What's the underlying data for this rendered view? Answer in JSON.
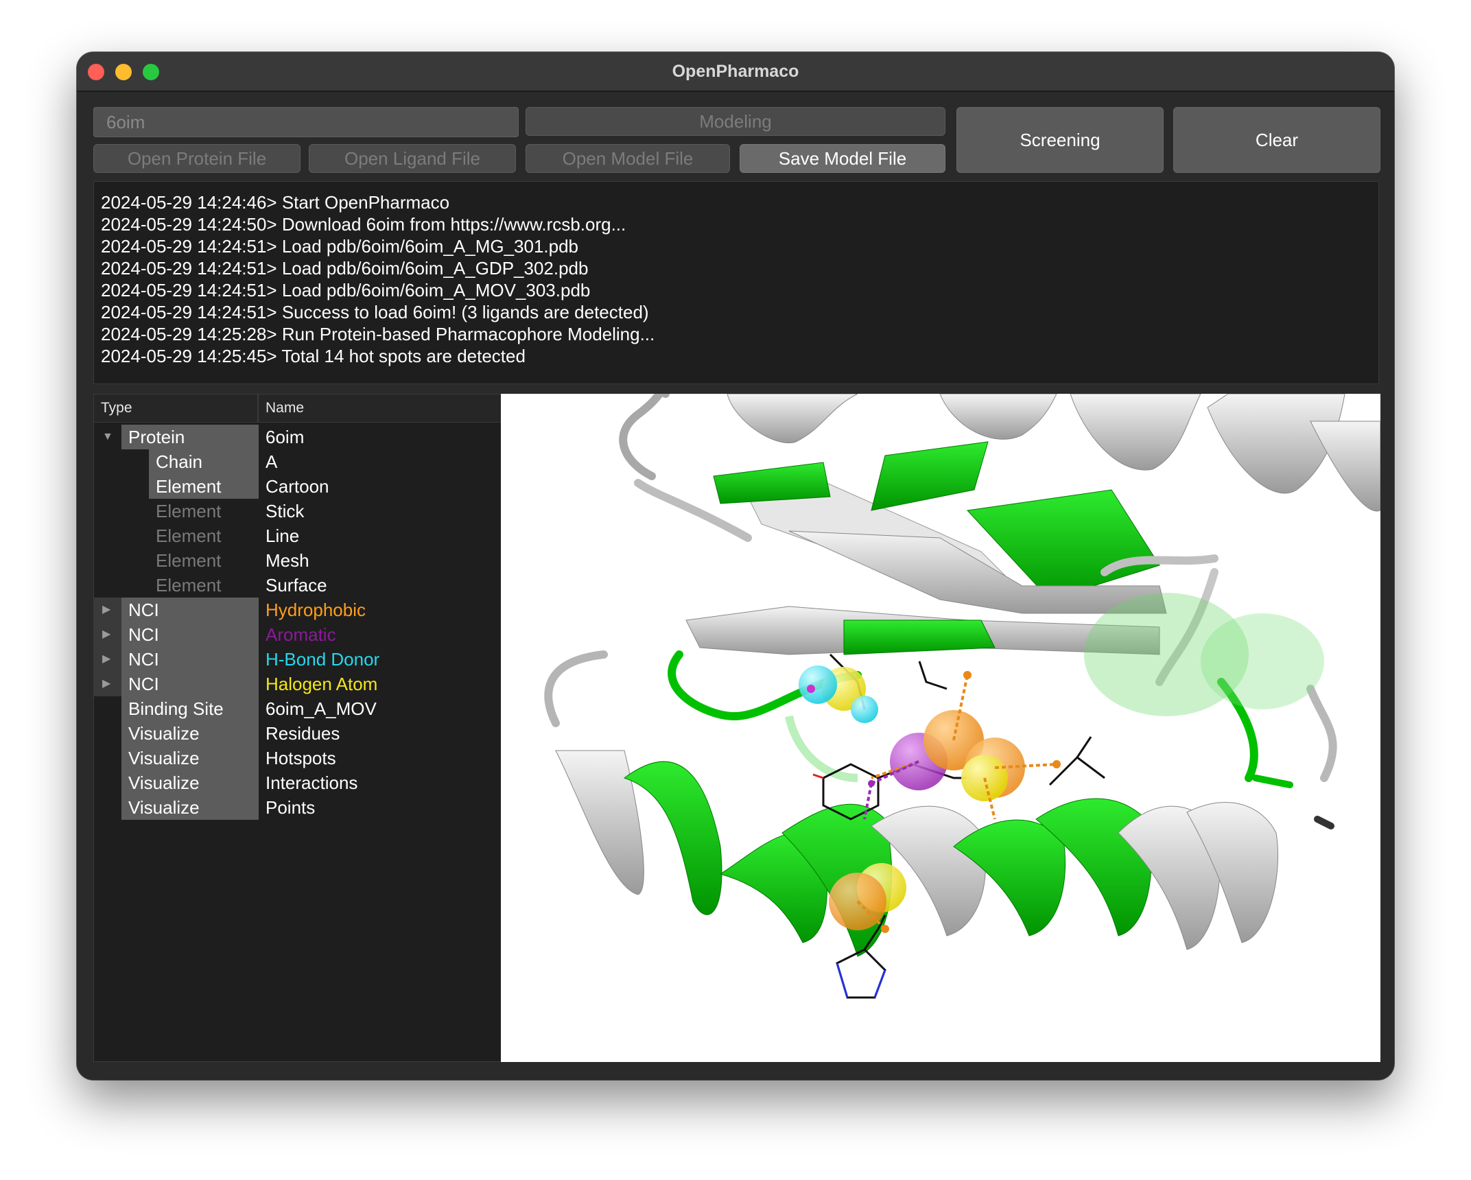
{
  "window": {
    "title": "OpenPharmaco"
  },
  "toolbar": {
    "pdb_input": "6oim",
    "modeling_label": "Modeling",
    "open_protein_label": "Open Protein File",
    "open_ligand_label": "Open Ligand File",
    "open_model_label": "Open Model File",
    "save_model_label": "Save Model File",
    "screening_label": "Screening",
    "clear_label": "Clear"
  },
  "log": [
    "2024-05-29 14:24:46> Start OpenPharmaco",
    "2024-05-29 14:24:50> Download 6oim from https://www.rcsb.org...",
    "2024-05-29 14:24:51> Load pdb/6oim/6oim_A_MG_301.pdb",
    "2024-05-29 14:24:51> Load pdb/6oim/6oim_A_GDP_302.pdb",
    "2024-05-29 14:24:51> Load pdb/6oim/6oim_A_MOV_303.pdb",
    "2024-05-29 14:24:51> Success to load 6oim! (3 ligands are detected)",
    "2024-05-29 14:25:28> Run Protein-based Pharmacophore Modeling...",
    "2024-05-29 14:25:45> Total 14 hot spots are detected"
  ],
  "tree": {
    "headers": {
      "type": "Type",
      "name": "Name"
    },
    "rows": [
      {
        "type": "Protein",
        "name": "6oim"
      },
      {
        "type": "Chain",
        "name": "A"
      },
      {
        "type": "Element",
        "name": "Cartoon"
      },
      {
        "type": "Element",
        "name": "Stick"
      },
      {
        "type": "Element",
        "name": "Line"
      },
      {
        "type": "Element",
        "name": "Mesh"
      },
      {
        "type": "Element",
        "name": "Surface"
      },
      {
        "type": "NCI",
        "name": "Hydrophobic"
      },
      {
        "type": "NCI",
        "name": "Aromatic"
      },
      {
        "type": "NCI",
        "name": "H-Bond Donor"
      },
      {
        "type": "NCI",
        "name": "Halogen Atom"
      },
      {
        "type": "Binding Site",
        "name": "6oim_A_MOV"
      },
      {
        "type": "Visualize",
        "name": "Residues"
      },
      {
        "type": "Visualize",
        "name": "Hotspots"
      },
      {
        "type": "Visualize",
        "name": "Interactions"
      },
      {
        "type": "Visualize",
        "name": "Points"
      }
    ]
  },
  "colors": {
    "hydrophobic": "#ff9f1c",
    "aromatic": "#8b1a9b",
    "hbond_donor": "#25d9ee",
    "halogen": "#f5e61a",
    "protein_green": "#00c800",
    "protein_gray": "#c8c8c8"
  },
  "icons": {
    "expanded": "triangle-down-icon",
    "collapsed": "triangle-right-icon"
  }
}
